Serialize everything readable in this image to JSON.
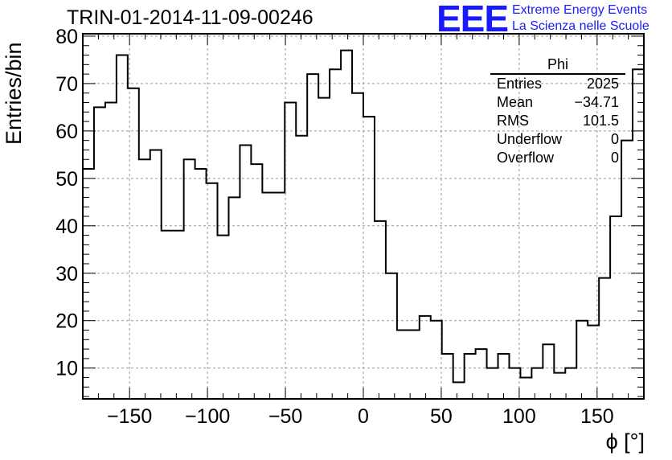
{
  "title": "TRIN-01-2014-11-09-00246",
  "logo": {
    "mark": "EEE",
    "line1": "Extreme Energy Events",
    "line2": "La Scienza nelle Scuole"
  },
  "stats": {
    "name": "Phi",
    "rows": [
      {
        "label": "Entries",
        "value": "2025"
      },
      {
        "label": "Mean",
        "value": "−34.71"
      },
      {
        "label": "RMS",
        "value": "101.5"
      },
      {
        "label": "Underflow",
        "value": "0"
      },
      {
        "label": "Overflow",
        "value": "0"
      }
    ]
  },
  "chart_data": {
    "type": "histogram",
    "xlabel": "ϕ [°]",
    "ylabel": "Entries/bin",
    "xlim": [
      -180,
      180
    ],
    "ylim": [
      3.5,
      80.5
    ],
    "bin_width": 7.2,
    "x_ticks": [
      -150,
      -100,
      -50,
      0,
      50,
      100,
      150
    ],
    "y_ticks": [
      10,
      20,
      30,
      40,
      50,
      60,
      70,
      80
    ],
    "grid": true,
    "values": [
      52,
      65,
      66,
      76,
      69,
      54,
      56,
      39,
      39,
      54,
      52,
      49,
      38,
      46,
      57,
      53,
      47,
      47,
      66,
      59,
      72,
      67,
      73,
      77,
      68,
      63,
      41,
      30,
      18,
      18,
      21,
      20,
      13,
      7,
      13,
      14,
      10,
      13,
      10,
      8,
      10,
      15,
      9,
      10,
      20,
      19,
      29,
      42,
      58,
      73
    ]
  }
}
